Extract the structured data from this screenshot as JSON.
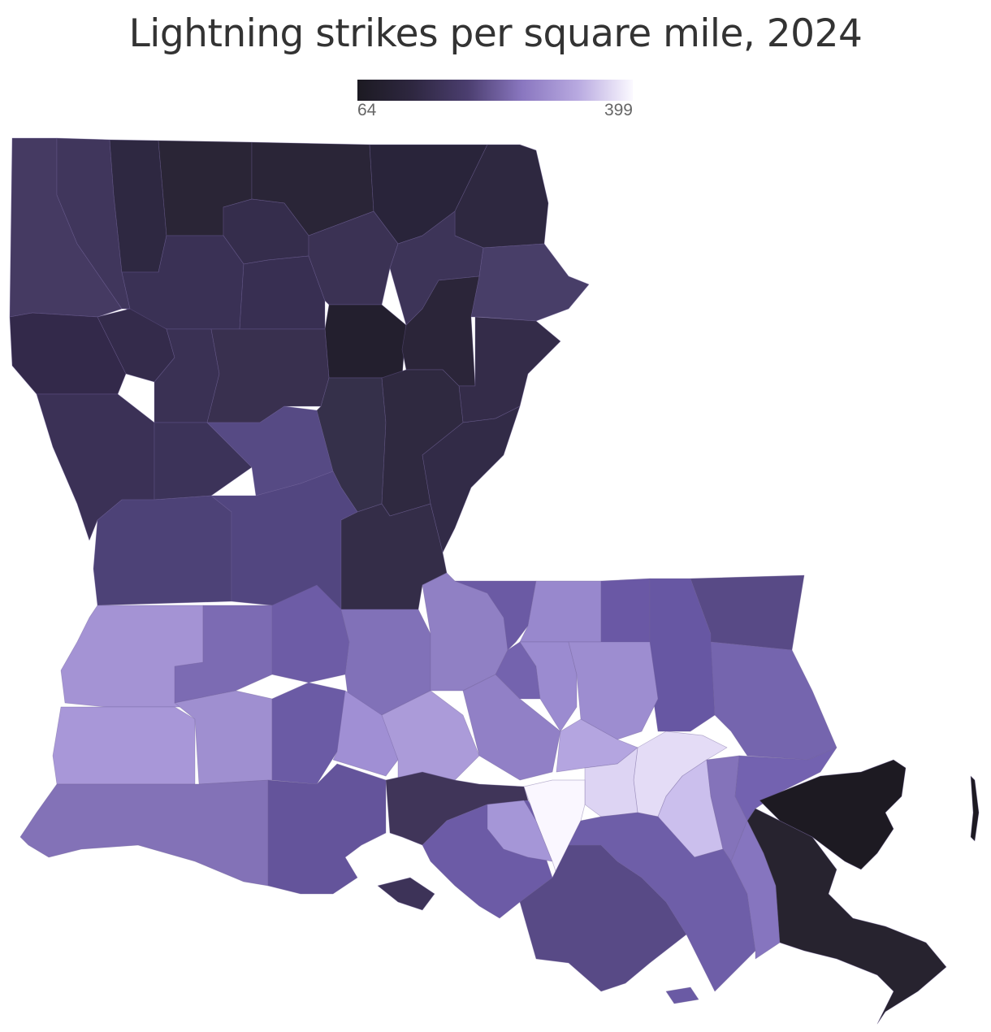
{
  "title": "Lightning strikes per square mile, 2024",
  "legend": {
    "min_label": "64",
    "max_label": "399",
    "min_value": 64,
    "max_value": 399,
    "color_stops": [
      "#1c1a22",
      "#2e2740",
      "#4b3e6f",
      "#8a77c0",
      "#b8a9e0",
      "#fbf9ff"
    ]
  },
  "map_colors": {
    "border": "#6e5f99",
    "background": "#ffffff"
  }
}
